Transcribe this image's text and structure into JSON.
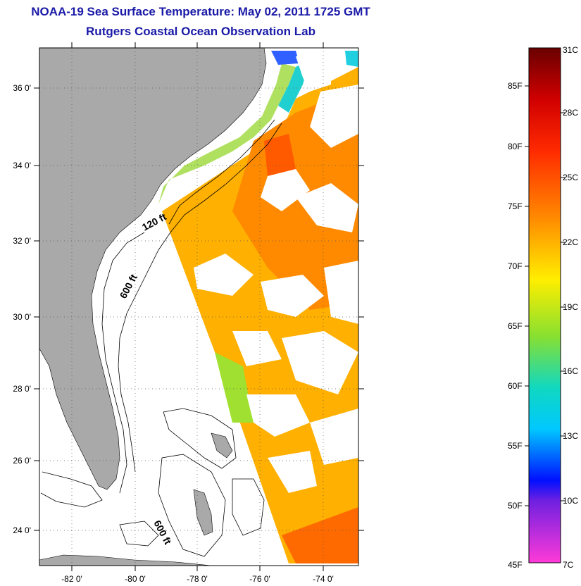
{
  "header": {
    "title": "NOAA-19 Sea Surface Temperature:  May 02, 2011 1725 GMT",
    "subtitle": "Rutgers Coastal Ocean Observation Lab"
  },
  "map": {
    "lat_labels": [
      "36 0'",
      "34 0'",
      "32 0'",
      "30 0'",
      "28 0'",
      "26 0'",
      "24 0'"
    ],
    "lon_labels": [
      "-82 0'",
      "-80 0'",
      "-78 0'",
      "-76 0'",
      "-74 0'"
    ],
    "contour_labels": [
      "120 ft",
      "600 ft",
      "600 ft"
    ]
  },
  "colorbar": {
    "fahrenheit_labels": [
      "85F",
      "80F",
      "75F",
      "70F",
      "65F",
      "60F",
      "55F",
      "50F",
      "45F"
    ],
    "celsius_labels": [
      "31C",
      "28C",
      "25C",
      "22C",
      "19C",
      "16C",
      "13C",
      "10C",
      "7C"
    ],
    "colors": {
      "top": "#7a0000",
      "red": "#ff1a00",
      "orange": "#ff8a00",
      "yellow": "#ffee00",
      "green": "#66dd33",
      "cyan": "#00e5e5",
      "blue": "#1a40ff",
      "purple": "#9020d0",
      "pink": "#ff40d0"
    }
  },
  "colors": {
    "land": "#a9a9a9",
    "title": "#1a1aa8"
  }
}
